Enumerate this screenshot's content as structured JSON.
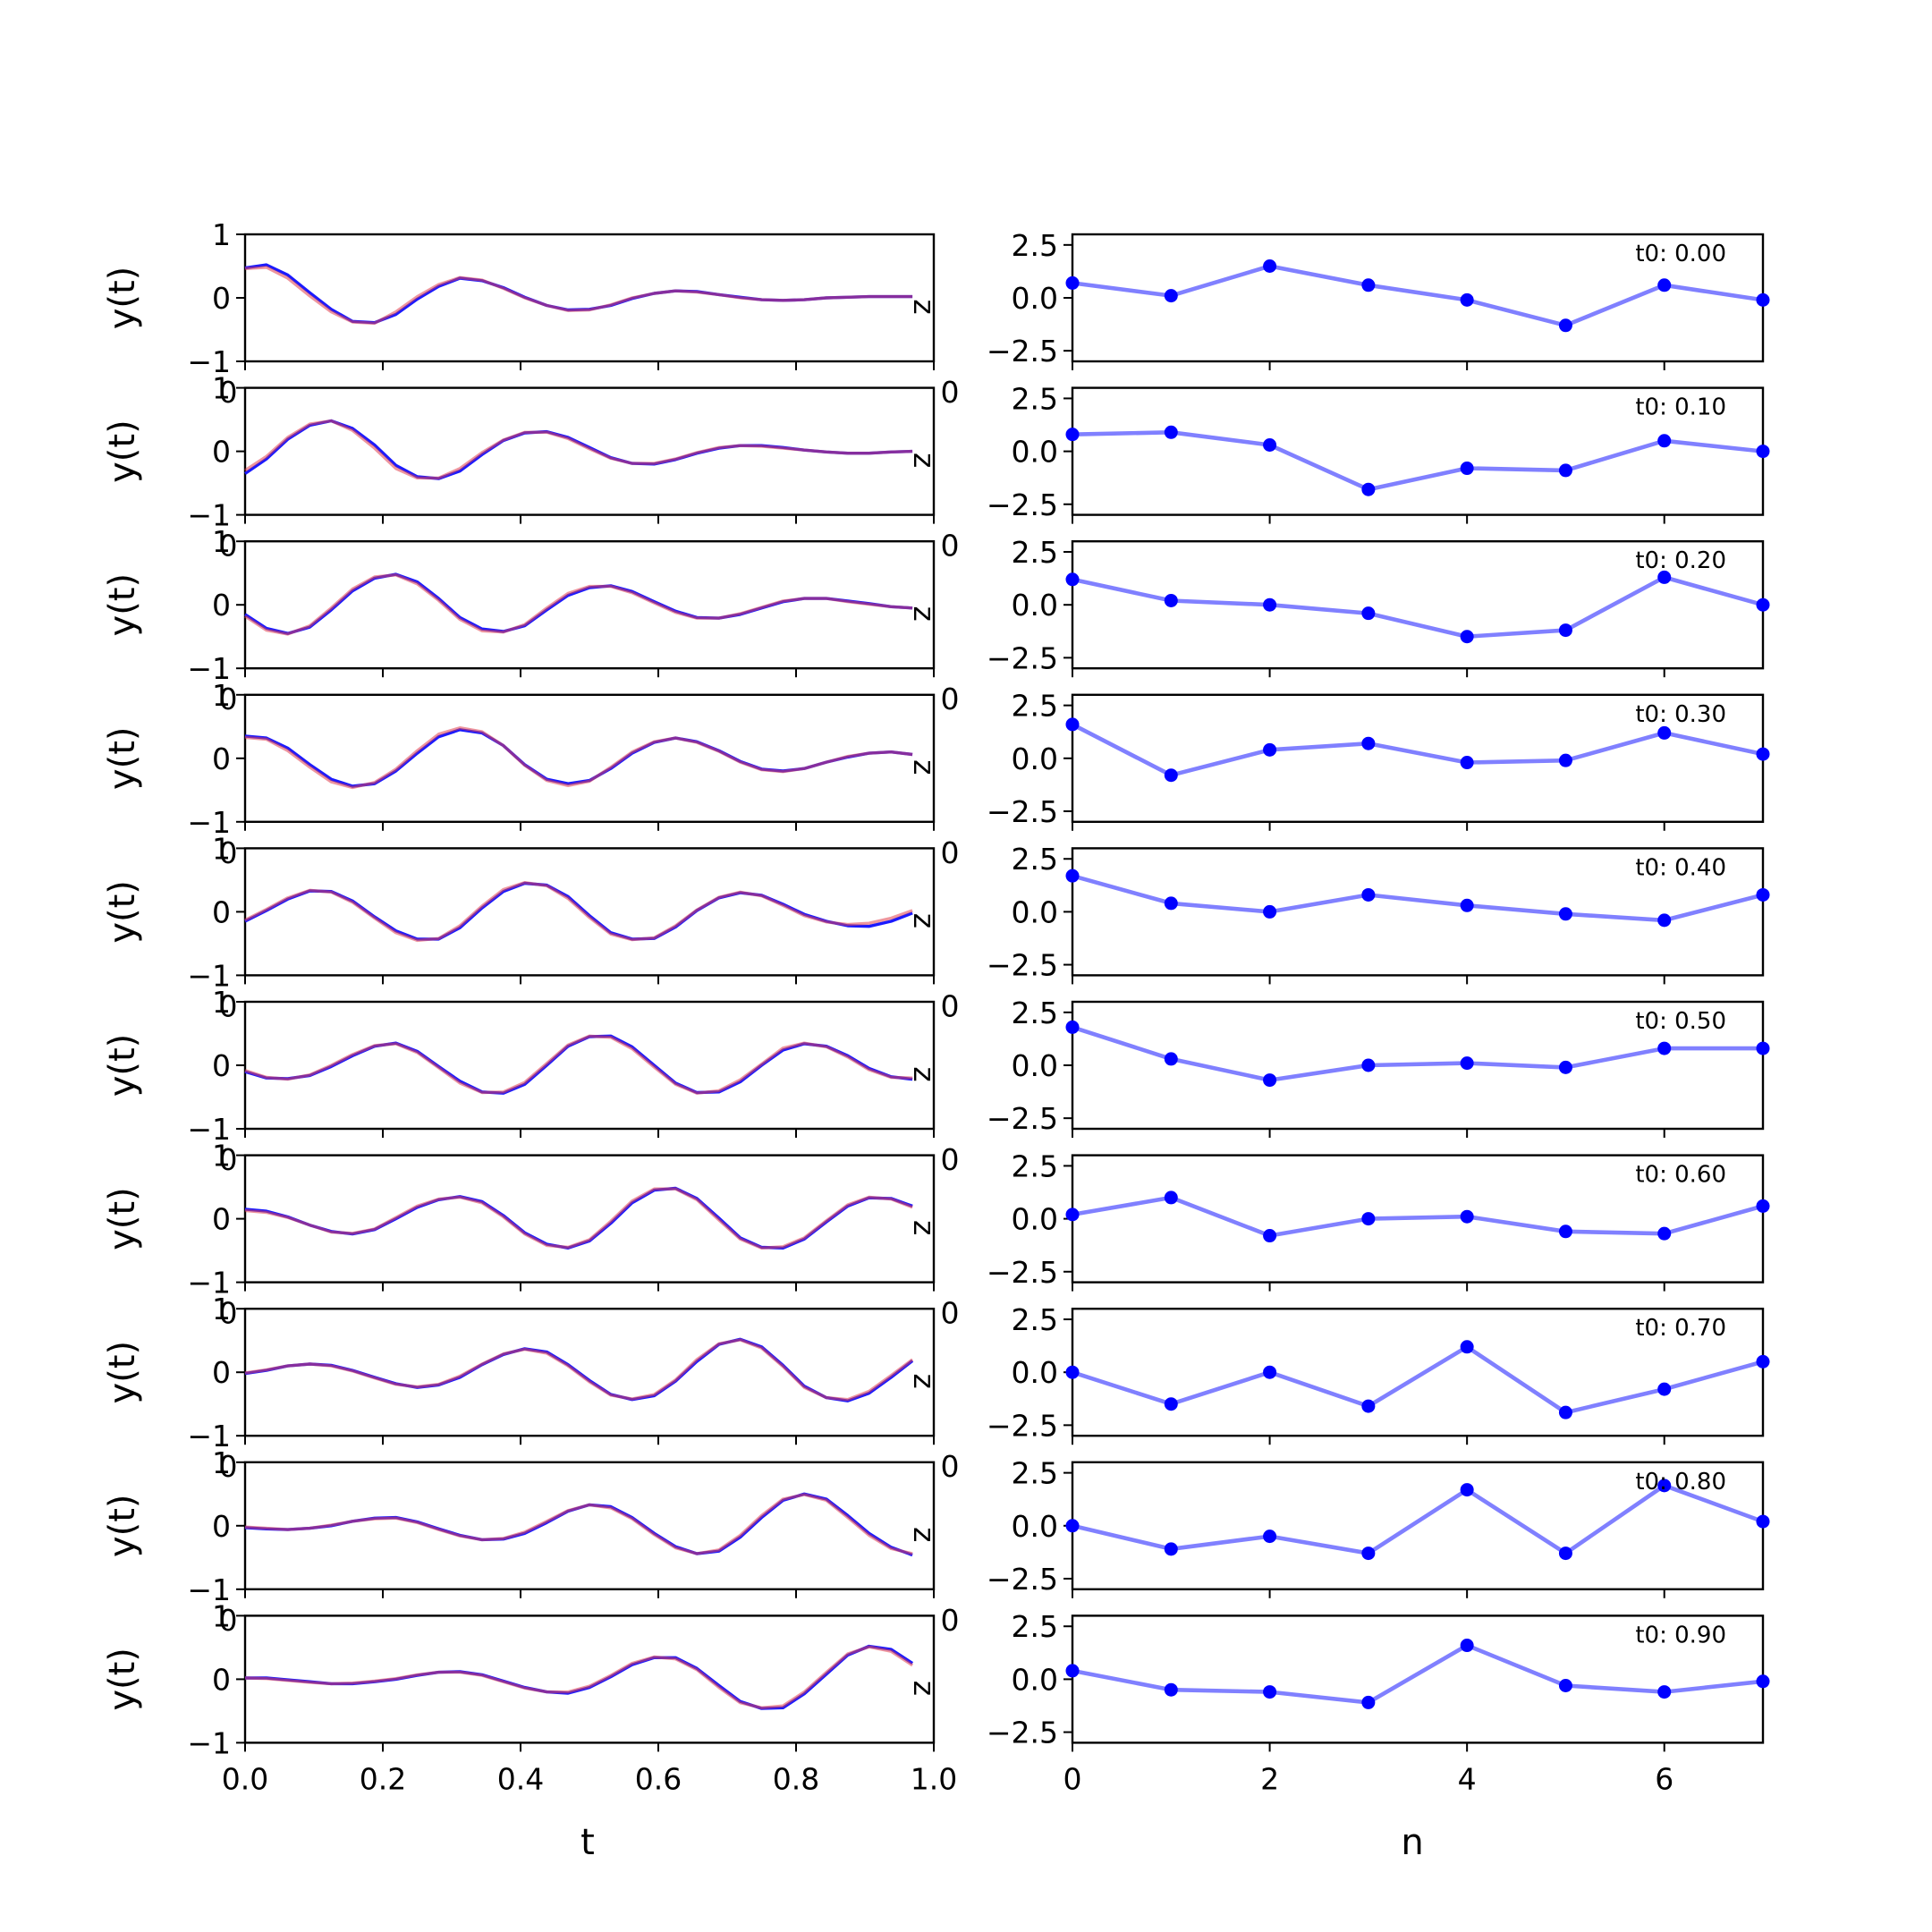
{
  "colors": {
    "left_signal": "#1a1aff",
    "left_reconstruction": "#e0404f",
    "right_series": "#8080ff",
    "right_marker": "#0000ff",
    "axes": "#000000",
    "background": "#ffffff"
  },
  "left_xlabel": "t",
  "right_xlabel": "n",
  "left_x_tick_labels": [
    "0.0",
    "0.2",
    "0.4",
    "0.6",
    "0.8",
    "1.0"
  ],
  "right_x_tick_labels": [
    "0",
    "2",
    "4",
    "6"
  ],
  "left_y_tick_labels": [
    "1",
    "0",
    "−1"
  ],
  "right_y_tick_labels": [
    "2.5",
    "0.0",
    "−2.5"
  ],
  "overlap_tick_labels": {
    "left": "0",
    "right": "0"
  },
  "chart_data": [
    {
      "type": "line",
      "panel": "left-column",
      "xlabel": "t",
      "ylabel": "y(t)",
      "xlim": [
        0,
        1
      ],
      "ylim": [
        -1,
        1
      ],
      "x": [
        0.0,
        0.031,
        0.062,
        0.094,
        0.125,
        0.156,
        0.188,
        0.219,
        0.25,
        0.281,
        0.312,
        0.344,
        0.375,
        0.406,
        0.438,
        0.469,
        0.5,
        0.531,
        0.562,
        0.594,
        0.625,
        0.656,
        0.688,
        0.719,
        0.75,
        0.781,
        0.812,
        0.844,
        0.875,
        0.906,
        0.938,
        0.969
      ],
      "rows": [
        {
          "signal": [
            0.47,
            0.52,
            0.36,
            0.08,
            -0.18,
            -0.37,
            -0.39,
            -0.26,
            -0.02,
            0.18,
            0.31,
            0.27,
            0.16,
            0.01,
            -0.12,
            -0.19,
            -0.18,
            -0.12,
            -0.01,
            0.07,
            0.11,
            0.1,
            0.05,
            0.01,
            -0.03,
            -0.04,
            -0.03,
            0.0,
            0.01,
            0.02,
            0.02,
            0.02
          ],
          "reconstruction": [
            0.46,
            0.48,
            0.31,
            0.03,
            -0.22,
            -0.38,
            -0.4,
            -0.22,
            0.02,
            0.21,
            0.32,
            0.28,
            0.15,
            0.0,
            -0.12,
            -0.2,
            -0.19,
            -0.11,
            0.0,
            0.07,
            0.11,
            0.09,
            0.05,
            0.0,
            -0.03,
            -0.04,
            -0.03,
            0.0,
            0.01,
            0.02,
            0.02,
            0.02
          ]
        },
        {
          "signal": [
            -0.35,
            -0.12,
            0.19,
            0.41,
            0.48,
            0.36,
            0.1,
            -0.22,
            -0.4,
            -0.43,
            -0.31,
            -0.05,
            0.17,
            0.29,
            0.31,
            0.22,
            0.06,
            -0.1,
            -0.19,
            -0.2,
            -0.13,
            -0.03,
            0.05,
            0.09,
            0.09,
            0.06,
            0.02,
            -0.01,
            -0.03,
            -0.03,
            -0.01,
            0.0
          ],
          "reconstruction": [
            -0.3,
            -0.08,
            0.22,
            0.43,
            0.48,
            0.33,
            0.05,
            -0.27,
            -0.42,
            -0.42,
            -0.27,
            -0.02,
            0.18,
            0.3,
            0.3,
            0.2,
            0.04,
            -0.11,
            -0.19,
            -0.19,
            -0.12,
            -0.02,
            0.06,
            0.09,
            0.08,
            0.05,
            0.02,
            -0.01,
            -0.03,
            -0.03,
            -0.01,
            0.0
          ]
        },
        {
          "signal": [
            -0.15,
            -0.37,
            -0.45,
            -0.35,
            -0.08,
            0.22,
            0.42,
            0.48,
            0.36,
            0.1,
            -0.2,
            -0.38,
            -0.42,
            -0.33,
            -0.08,
            0.15,
            0.27,
            0.3,
            0.21,
            0.05,
            -0.1,
            -0.2,
            -0.21,
            -0.15,
            -0.05,
            0.05,
            0.1,
            0.1,
            0.06,
            0.02,
            -0.03,
            -0.05
          ],
          "reconstruction": [
            -0.18,
            -0.4,
            -0.46,
            -0.33,
            -0.05,
            0.25,
            0.44,
            0.47,
            0.33,
            0.07,
            -0.23,
            -0.41,
            -0.43,
            -0.31,
            -0.05,
            0.18,
            0.29,
            0.29,
            0.19,
            0.03,
            -0.12,
            -0.21,
            -0.21,
            -0.14,
            -0.04,
            0.06,
            0.1,
            0.1,
            0.05,
            0.01,
            -0.03,
            -0.05
          ]
        },
        {
          "signal": [
            0.35,
            0.32,
            0.16,
            -0.1,
            -0.33,
            -0.44,
            -0.4,
            -0.2,
            0.08,
            0.34,
            0.45,
            0.4,
            0.2,
            -0.1,
            -0.33,
            -0.4,
            -0.35,
            -0.16,
            0.08,
            0.25,
            0.32,
            0.26,
            0.12,
            -0.05,
            -0.17,
            -0.2,
            -0.16,
            -0.06,
            0.02,
            0.08,
            0.1,
            0.06
          ],
          "reconstruction": [
            0.33,
            0.3,
            0.12,
            -0.14,
            -0.37,
            -0.46,
            -0.38,
            -0.17,
            0.12,
            0.38,
            0.48,
            0.42,
            0.2,
            -0.11,
            -0.35,
            -0.43,
            -0.36,
            -0.14,
            0.1,
            0.26,
            0.32,
            0.25,
            0.11,
            -0.06,
            -0.18,
            -0.21,
            -0.16,
            -0.06,
            0.03,
            0.08,
            0.1,
            0.06
          ]
        },
        {
          "signal": [
            -0.15,
            0.02,
            0.2,
            0.33,
            0.32,
            0.17,
            -0.08,
            -0.3,
            -0.43,
            -0.43,
            -0.25,
            0.06,
            0.32,
            0.45,
            0.42,
            0.24,
            -0.06,
            -0.33,
            -0.43,
            -0.42,
            -0.24,
            0.02,
            0.22,
            0.3,
            0.26,
            0.12,
            -0.04,
            -0.15,
            -0.22,
            -0.23,
            -0.15,
            -0.02
          ],
          "reconstruction": [
            -0.13,
            0.04,
            0.22,
            0.34,
            0.31,
            0.15,
            -0.1,
            -0.33,
            -0.45,
            -0.42,
            -0.22,
            0.09,
            0.35,
            0.46,
            0.41,
            0.21,
            -0.09,
            -0.35,
            -0.44,
            -0.41,
            -0.22,
            0.03,
            0.23,
            0.31,
            0.25,
            0.1,
            -0.06,
            -0.16,
            -0.2,
            -0.18,
            -0.1,
            0.02
          ]
        },
        {
          "signal": [
            -0.1,
            -0.2,
            -0.21,
            -0.16,
            -0.02,
            0.15,
            0.3,
            0.35,
            0.22,
            -0.02,
            -0.25,
            -0.42,
            -0.44,
            -0.3,
            0.0,
            0.3,
            0.45,
            0.46,
            0.29,
            0.0,
            -0.28,
            -0.43,
            -0.42,
            -0.26,
            0.0,
            0.24,
            0.34,
            0.3,
            0.15,
            -0.05,
            -0.18,
            -0.22
          ],
          "reconstruction": [
            -0.08,
            -0.19,
            -0.22,
            -0.15,
            0.0,
            0.17,
            0.31,
            0.34,
            0.2,
            -0.04,
            -0.28,
            -0.43,
            -0.42,
            -0.27,
            0.03,
            0.32,
            0.46,
            0.44,
            0.26,
            -0.03,
            -0.3,
            -0.44,
            -0.4,
            -0.23,
            0.02,
            0.27,
            0.35,
            0.29,
            0.13,
            -0.07,
            -0.19,
            -0.2
          ]
        },
        {
          "signal": [
            0.15,
            0.12,
            0.03,
            -0.1,
            -0.2,
            -0.24,
            -0.17,
            0.0,
            0.18,
            0.3,
            0.35,
            0.27,
            0.05,
            -0.22,
            -0.4,
            -0.46,
            -0.35,
            -0.07,
            0.25,
            0.45,
            0.48,
            0.32,
            0.01,
            -0.3,
            -0.45,
            -0.46,
            -0.32,
            -0.05,
            0.2,
            0.33,
            0.32,
            0.2
          ],
          "reconstruction": [
            0.13,
            0.1,
            0.02,
            -0.1,
            -0.21,
            -0.23,
            -0.16,
            0.02,
            0.2,
            0.31,
            0.34,
            0.25,
            0.03,
            -0.24,
            -0.42,
            -0.45,
            -0.33,
            -0.04,
            0.28,
            0.47,
            0.47,
            0.3,
            -0.02,
            -0.32,
            -0.46,
            -0.44,
            -0.3,
            -0.03,
            0.22,
            0.34,
            0.31,
            0.18
          ]
        },
        {
          "signal": [
            -0.02,
            0.03,
            0.1,
            0.13,
            0.11,
            0.03,
            -0.08,
            -0.18,
            -0.24,
            -0.2,
            -0.08,
            0.12,
            0.28,
            0.37,
            0.32,
            0.12,
            -0.13,
            -0.35,
            -0.43,
            -0.37,
            -0.14,
            0.17,
            0.44,
            0.52,
            0.4,
            0.11,
            -0.22,
            -0.4,
            -0.45,
            -0.33,
            -0.08,
            0.18
          ],
          "reconstruction": [
            -0.01,
            0.04,
            0.1,
            0.13,
            0.1,
            0.02,
            -0.09,
            -0.19,
            -0.23,
            -0.19,
            -0.06,
            0.13,
            0.29,
            0.36,
            0.3,
            0.1,
            -0.15,
            -0.36,
            -0.42,
            -0.35,
            -0.12,
            0.2,
            0.45,
            0.51,
            0.38,
            0.09,
            -0.24,
            -0.4,
            -0.43,
            -0.3,
            -0.05,
            0.2
          ]
        },
        {
          "signal": [
            -0.03,
            -0.05,
            -0.06,
            -0.04,
            0.0,
            0.07,
            0.12,
            0.13,
            0.06,
            -0.05,
            -0.15,
            -0.22,
            -0.21,
            -0.12,
            0.05,
            0.23,
            0.33,
            0.3,
            0.13,
            -0.12,
            -0.33,
            -0.44,
            -0.4,
            -0.18,
            0.13,
            0.4,
            0.5,
            0.42,
            0.16,
            -0.12,
            -0.34,
            -0.46
          ],
          "reconstruction": [
            -0.02,
            -0.04,
            -0.06,
            -0.04,
            0.01,
            0.07,
            0.11,
            0.12,
            0.05,
            -0.06,
            -0.16,
            -0.22,
            -0.2,
            -0.1,
            0.07,
            0.24,
            0.33,
            0.28,
            0.11,
            -0.14,
            -0.35,
            -0.44,
            -0.38,
            -0.15,
            0.16,
            0.42,
            0.49,
            0.4,
            0.13,
            -0.15,
            -0.36,
            -0.44
          ]
        },
        {
          "signal": [
            0.02,
            0.02,
            -0.01,
            -0.04,
            -0.07,
            -0.07,
            -0.04,
            0.0,
            0.06,
            0.11,
            0.12,
            0.07,
            -0.03,
            -0.13,
            -0.2,
            -0.22,
            -0.13,
            0.04,
            0.23,
            0.34,
            0.34,
            0.17,
            -0.1,
            -0.35,
            -0.46,
            -0.45,
            -0.23,
            0.08,
            0.38,
            0.52,
            0.47,
            0.25
          ],
          "reconstruction": [
            0.02,
            0.01,
            -0.02,
            -0.05,
            -0.07,
            -0.06,
            -0.03,
            0.01,
            0.07,
            0.11,
            0.11,
            0.06,
            -0.04,
            -0.14,
            -0.2,
            -0.2,
            -0.11,
            0.06,
            0.25,
            0.35,
            0.32,
            0.15,
            -0.13,
            -0.37,
            -0.45,
            -0.42,
            -0.2,
            0.11,
            0.4,
            0.51,
            0.44,
            0.22
          ]
        }
      ]
    },
    {
      "type": "line",
      "panel": "right-column",
      "xlabel": "n",
      "xlim": [
        0,
        7
      ],
      "ylim": [
        -3,
        3
      ],
      "x": [
        0,
        1,
        2,
        3,
        4,
        5,
        6,
        7
      ],
      "rows": [
        {
          "label": "t0: 0.00",
          "values": [
            0.7,
            0.1,
            1.5,
            0.6,
            -0.1,
            -1.3,
            0.6,
            -0.1
          ]
        },
        {
          "label": "t0: 0.10",
          "values": [
            0.8,
            0.9,
            0.3,
            -1.8,
            -0.8,
            -0.9,
            0.5,
            0.0
          ]
        },
        {
          "label": "t0: 0.20",
          "values": [
            1.2,
            0.2,
            0.0,
            -0.4,
            -1.5,
            -1.2,
            1.3,
            0.0
          ]
        },
        {
          "label": "t0: 0.30",
          "values": [
            1.6,
            -0.8,
            0.4,
            0.7,
            -0.2,
            -0.1,
            1.2,
            0.2
          ]
        },
        {
          "label": "t0: 0.40",
          "values": [
            1.7,
            0.4,
            0.0,
            0.8,
            0.3,
            -0.1,
            -0.4,
            0.8
          ]
        },
        {
          "label": "t0: 0.50",
          "values": [
            1.8,
            0.3,
            -0.7,
            0.0,
            0.1,
            -0.1,
            0.8,
            0.8
          ]
        },
        {
          "label": "t0: 0.60",
          "values": [
            0.2,
            1.0,
            -0.8,
            0.0,
            0.1,
            -0.6,
            -0.7,
            0.6
          ]
        },
        {
          "label": "t0: 0.70",
          "values": [
            0.0,
            -1.5,
            0.0,
            -1.6,
            1.2,
            -1.9,
            -0.8,
            0.5
          ]
        },
        {
          "label": "t0: 0.80",
          "values": [
            0.0,
            -1.1,
            -0.5,
            -1.3,
            1.7,
            -1.3,
            1.9,
            0.2
          ]
        },
        {
          "label": "t0: 0.90",
          "values": [
            0.4,
            -0.5,
            -0.6,
            -1.1,
            1.6,
            -0.3,
            -0.6,
            -0.1
          ]
        }
      ]
    }
  ]
}
